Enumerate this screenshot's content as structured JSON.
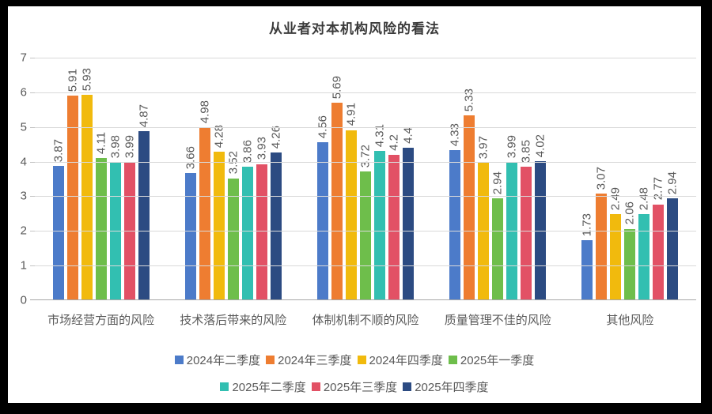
{
  "chart_data": {
    "type": "bar",
    "title": "从业者对本机构风险的看法",
    "categories": [
      "市场经营方面的风险",
      "技术落后带来的风险",
      "体制机制不顺的风险",
      "质量管理不佳的风险",
      "其他风险"
    ],
    "series": [
      {
        "name": "2024年二季度",
        "color": "#4c7bc9",
        "values": [
          3.87,
          3.66,
          4.56,
          4.33,
          1.73
        ]
      },
      {
        "name": "2024年三季度",
        "color": "#ee7d31",
        "values": [
          5.91,
          4.98,
          5.69,
          5.33,
          3.07
        ]
      },
      {
        "name": "2024年四季度",
        "color": "#f1ba0d",
        "values": [
          5.93,
          4.28,
          4.91,
          3.97,
          2.49
        ]
      },
      {
        "name": "2025年一季度",
        "color": "#6ebe4b",
        "values": [
          4.11,
          3.52,
          3.72,
          2.94,
          2.06
        ]
      },
      {
        "name": "2025年二季度",
        "color": "#32bfb1",
        "values": [
          3.98,
          3.86,
          4.31,
          3.99,
          2.48
        ]
      },
      {
        "name": "2025年三季度",
        "color": "#e25165",
        "values": [
          3.99,
          3.93,
          4.2,
          3.85,
          2.77
        ]
      },
      {
        "name": "2025年四季度",
        "color": "#2c4b82",
        "values": [
          4.87,
          4.26,
          4.4,
          4.02,
          2.94
        ]
      }
    ],
    "ylim": [
      0,
      7
    ],
    "yticks": [
      0,
      1,
      2,
      3,
      4,
      5,
      6,
      7
    ],
    "grid": true,
    "data_labels": "rotated-90-above-bars",
    "legend_position": "bottom",
    "legend_rows": [
      [
        0,
        1,
        2,
        3
      ],
      [
        4,
        5,
        6
      ]
    ]
  },
  "frame": {
    "border_color": "#000000",
    "background_color": "#ffffff"
  }
}
